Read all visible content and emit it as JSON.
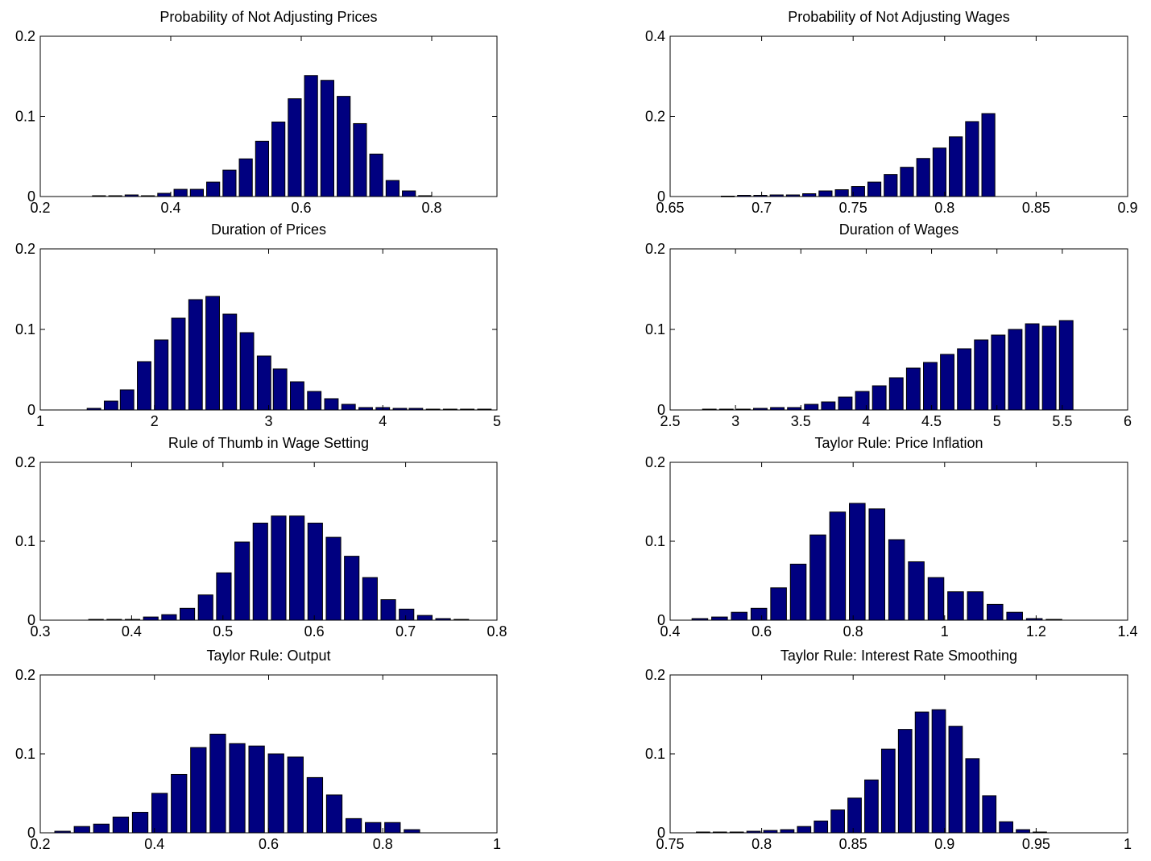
{
  "chart_data": [
    {
      "type": "bar",
      "title": "Probability of Not Adjusting Prices",
      "xlim": [
        0.2,
        0.9
      ],
      "ylim": [
        0,
        0.2
      ],
      "xticks": [
        "0.2",
        "0.4",
        "0.6",
        "0.8"
      ],
      "yticks": [
        "0",
        "0.1",
        "0.2"
      ],
      "x": [
        0.29,
        0.315,
        0.34,
        0.365,
        0.39,
        0.415,
        0.44,
        0.465,
        0.49,
        0.515,
        0.54,
        0.565,
        0.59,
        0.615,
        0.64,
        0.665,
        0.69,
        0.715,
        0.74,
        0.765,
        0.79
      ],
      "values": [
        0.001,
        0.001,
        0.002,
        0.001,
        0.004,
        0.009,
        0.009,
        0.018,
        0.033,
        0.047,
        0.069,
        0.093,
        0.122,
        0.151,
        0.145,
        0.125,
        0.091,
        0.053,
        0.02,
        0.007,
        0.001
      ]
    },
    {
      "type": "bar",
      "title": "Probability of Not Adjusting Wages",
      "xlim": [
        0.65,
        0.9
      ],
      "ylim": [
        0,
        0.4
      ],
      "xticks": [
        "0.65",
        "0.7",
        "0.75",
        "0.8",
        "0.85",
        "0.9"
      ],
      "yticks": [
        "0",
        "0.2",
        "0.4"
      ],
      "x": [
        0.6815,
        0.6904,
        0.6993,
        0.7082,
        0.7171,
        0.726,
        0.7349,
        0.7438,
        0.7527,
        0.7616,
        0.7705,
        0.7794,
        0.7883,
        0.7972,
        0.8061,
        0.815,
        0.8239
      ],
      "values": [
        0.001,
        0.003,
        0.003,
        0.004,
        0.004,
        0.007,
        0.014,
        0.017,
        0.025,
        0.036,
        0.055,
        0.073,
        0.095,
        0.121,
        0.149,
        0.187,
        0.207
      ]
    },
    {
      "type": "bar",
      "title": "Duration of Prices",
      "xlim": [
        1,
        5
      ],
      "ylim": [
        0,
        0.2
      ],
      "xticks": [
        "1",
        "2",
        "3",
        "4",
        "5"
      ],
      "yticks": [
        "0",
        "0.1",
        "0.2"
      ],
      "x": [
        1.47,
        1.62,
        1.76,
        1.91,
        2.06,
        2.21,
        2.36,
        2.51,
        2.66,
        2.81,
        2.96,
        3.1,
        3.25,
        3.4,
        3.55,
        3.7,
        3.85,
        4.0,
        4.15,
        4.29,
        4.44,
        4.59,
        4.74,
        4.89
      ],
      "values": [
        0.002,
        0.011,
        0.025,
        0.06,
        0.087,
        0.114,
        0.137,
        0.141,
        0.119,
        0.096,
        0.067,
        0.051,
        0.035,
        0.023,
        0.014,
        0.007,
        0.003,
        0.003,
        0.002,
        0.002,
        0.001,
        0.001,
        0.001,
        0.001
      ]
    },
    {
      "type": "bar",
      "title": "Duration of Wages",
      "xlim": [
        2.5,
        6
      ],
      "ylim": [
        0,
        0.2
      ],
      "xticks": [
        "2.5",
        "3",
        "3.5",
        "4",
        "4.5",
        "5",
        "5.5",
        "6"
      ],
      "yticks": [
        "0",
        "0.1",
        "0.2"
      ],
      "x": [
        2.8,
        2.93,
        3.06,
        3.19,
        3.32,
        3.45,
        3.58,
        3.71,
        3.84,
        3.97,
        4.1,
        4.23,
        4.36,
        4.49,
        4.62,
        4.75,
        4.88,
        5.01,
        5.14,
        5.27,
        5.4,
        5.53,
        5.66,
        5.79
      ],
      "values": [
        0.001,
        0.001,
        0.001,
        0.002,
        0.003,
        0.003,
        0.007,
        0.01,
        0.016,
        0.023,
        0.03,
        0.04,
        0.052,
        0.059,
        0.069,
        0.076,
        0.087,
        0.093,
        0.1,
        0.107,
        0.104,
        0.111,
        0.0,
        0.0
      ]
    },
    {
      "type": "bar",
      "title": "Rule of Thumb in Wage Setting",
      "xlim": [
        0.3,
        0.8
      ],
      "ylim": [
        0,
        0.2
      ],
      "xticks": [
        "0.3",
        "0.4",
        "0.5",
        "0.6",
        "0.7",
        "0.8"
      ],
      "yticks": [
        "0",
        "0.1",
        "0.2"
      ],
      "x": [
        0.361,
        0.381,
        0.401,
        0.421,
        0.441,
        0.461,
        0.481,
        0.501,
        0.521,
        0.541,
        0.561,
        0.581,
        0.601,
        0.621,
        0.641,
        0.661,
        0.681,
        0.701,
        0.721,
        0.741,
        0.761
      ],
      "values": [
        0.001,
        0.001,
        0.001,
        0.004,
        0.007,
        0.015,
        0.032,
        0.06,
        0.099,
        0.123,
        0.132,
        0.132,
        0.123,
        0.105,
        0.081,
        0.054,
        0.026,
        0.014,
        0.006,
        0.002,
        0.001
      ]
    },
    {
      "type": "bar",
      "title": "Taylor Rule: Price Inflation",
      "xlim": [
        0.4,
        1.4
      ],
      "ylim": [
        0,
        0.2
      ],
      "xticks": [
        "0.4",
        "0.6",
        "0.8",
        "1",
        "1.2",
        "1.4"
      ],
      "yticks": [
        "0",
        "0.1",
        "0.2"
      ],
      "x": [
        0.465,
        0.508,
        0.551,
        0.594,
        0.637,
        0.68,
        0.723,
        0.766,
        0.809,
        0.852,
        0.895,
        0.938,
        0.981,
        1.024,
        1.067,
        1.11,
        1.153,
        1.196,
        1.239
      ],
      "values": [
        0.002,
        0.004,
        0.01,
        0.015,
        0.041,
        0.071,
        0.108,
        0.137,
        0.148,
        0.141,
        0.102,
        0.074,
        0.054,
        0.036,
        0.036,
        0.02,
        0.01,
        0.002,
        0.001
      ]
    },
    {
      "type": "bar",
      "title": "Taylor Rule: Output",
      "xlim": [
        0.2,
        1
      ],
      "ylim": [
        0,
        0.2
      ],
      "xticks": [
        "0.2",
        "0.4",
        "0.6",
        "0.8",
        "1"
      ],
      "yticks": [
        "0",
        "0.1",
        "0.2"
      ],
      "x": [
        0.239,
        0.273,
        0.307,
        0.341,
        0.375,
        0.409,
        0.443,
        0.477,
        0.511,
        0.545,
        0.579,
        0.613,
        0.647,
        0.681,
        0.715,
        0.749,
        0.783,
        0.817,
        0.851
      ],
      "values": [
        0.002,
        0.008,
        0.011,
        0.02,
        0.026,
        0.05,
        0.074,
        0.108,
        0.125,
        0.113,
        0.11,
        0.1,
        0.096,
        0.07,
        0.048,
        0.018,
        0.013,
        0.013,
        0.004
      ]
    },
    {
      "type": "bar",
      "title": "Taylor Rule: Interest Rate Smoothing",
      "xlim": [
        0.75,
        1
      ],
      "ylim": [
        0,
        0.2
      ],
      "xticks": [
        "0.75",
        "0.8",
        "0.85",
        "0.9",
        "0.95",
        "1"
      ],
      "yticks": [
        "0",
        "0.1",
        "0.2"
      ],
      "x": [
        0.768,
        0.7772,
        0.7864,
        0.7956,
        0.8048,
        0.814,
        0.8232,
        0.8324,
        0.8416,
        0.8508,
        0.86,
        0.8692,
        0.8784,
        0.8876,
        0.8968,
        0.906,
        0.9152,
        0.9244,
        0.9336,
        0.9428,
        0.952
      ],
      "values": [
        0.001,
        0.001,
        0.001,
        0.002,
        0.003,
        0.004,
        0.008,
        0.015,
        0.029,
        0.044,
        0.067,
        0.106,
        0.131,
        0.153,
        0.156,
        0.135,
        0.094,
        0.047,
        0.014,
        0.004,
        0.001
      ]
    }
  ]
}
